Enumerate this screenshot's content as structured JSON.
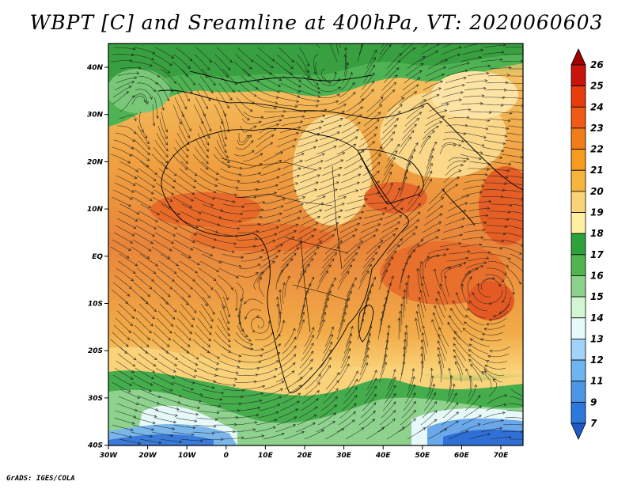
{
  "title": "WBPT [C] and Sreamline at 400hPa, VT: 2020060603",
  "credit": "GrADS: IGES/COLA",
  "map": {
    "x_ticks": [
      "30W",
      "20W",
      "10W",
      "0",
      "10E",
      "20E",
      "30E",
      "40E",
      "50E",
      "60E",
      "70E"
    ],
    "y_ticks": [
      "40N",
      "30N",
      "20N",
      "10N",
      "EQ",
      "10S",
      "20S",
      "30S",
      "40S"
    ],
    "lon_range": [
      -30,
      75
    ],
    "lat_range": [
      -40,
      45
    ]
  },
  "colorbar": {
    "labels": [
      "26",
      "25",
      "24",
      "23",
      "22",
      "21",
      "20",
      "19",
      "18",
      "17",
      "16",
      "15",
      "14",
      "13",
      "12",
      "11",
      "9",
      "7"
    ],
    "colors": [
      "#a00000",
      "#c8140a",
      "#e63c0f",
      "#f05a14",
      "#f07d19",
      "#f59b1e",
      "#f5b43c",
      "#fad278",
      "#fff0a0",
      "#2ea03c",
      "#50b450",
      "#8cd28c",
      "#d2f5d2",
      "#e6fafa",
      "#a0d2fa",
      "#6eb4f0",
      "#4b96e6",
      "#2d78dc",
      "#1e5ac8"
    ]
  }
}
